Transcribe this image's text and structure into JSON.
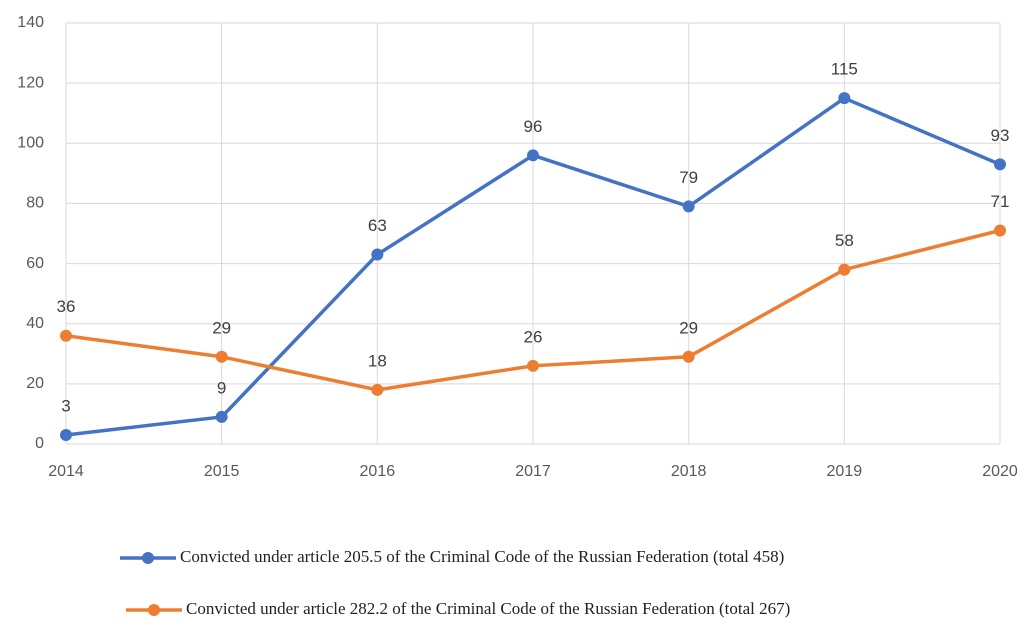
{
  "chart_data": {
    "type": "line",
    "x": [
      2014,
      2015,
      2016,
      2017,
      2018,
      2019,
      2020
    ],
    "xlim": [
      2014,
      2020
    ],
    "xticks": [
      2014,
      2015,
      2016,
      2017,
      2018,
      2019,
      2020
    ],
    "ylim": [
      0,
      140
    ],
    "yticks": [
      0,
      20,
      40,
      60,
      80,
      100,
      120,
      140
    ],
    "grid": true,
    "legend": "bottom",
    "series": [
      {
        "name": "Convicted under article 205.5 of the Criminal Code of the Russian Federation (total 458)",
        "color": "#4472c4",
        "values": [
          3,
          9,
          63,
          96,
          79,
          115,
          93
        ]
      },
      {
        "name": "Convicted under article 282.2 of the Criminal Code of the Russian Federation (total 267)",
        "color": "#ed7d31",
        "values": [
          36,
          29,
          18,
          26,
          29,
          58,
          71
        ]
      }
    ]
  }
}
